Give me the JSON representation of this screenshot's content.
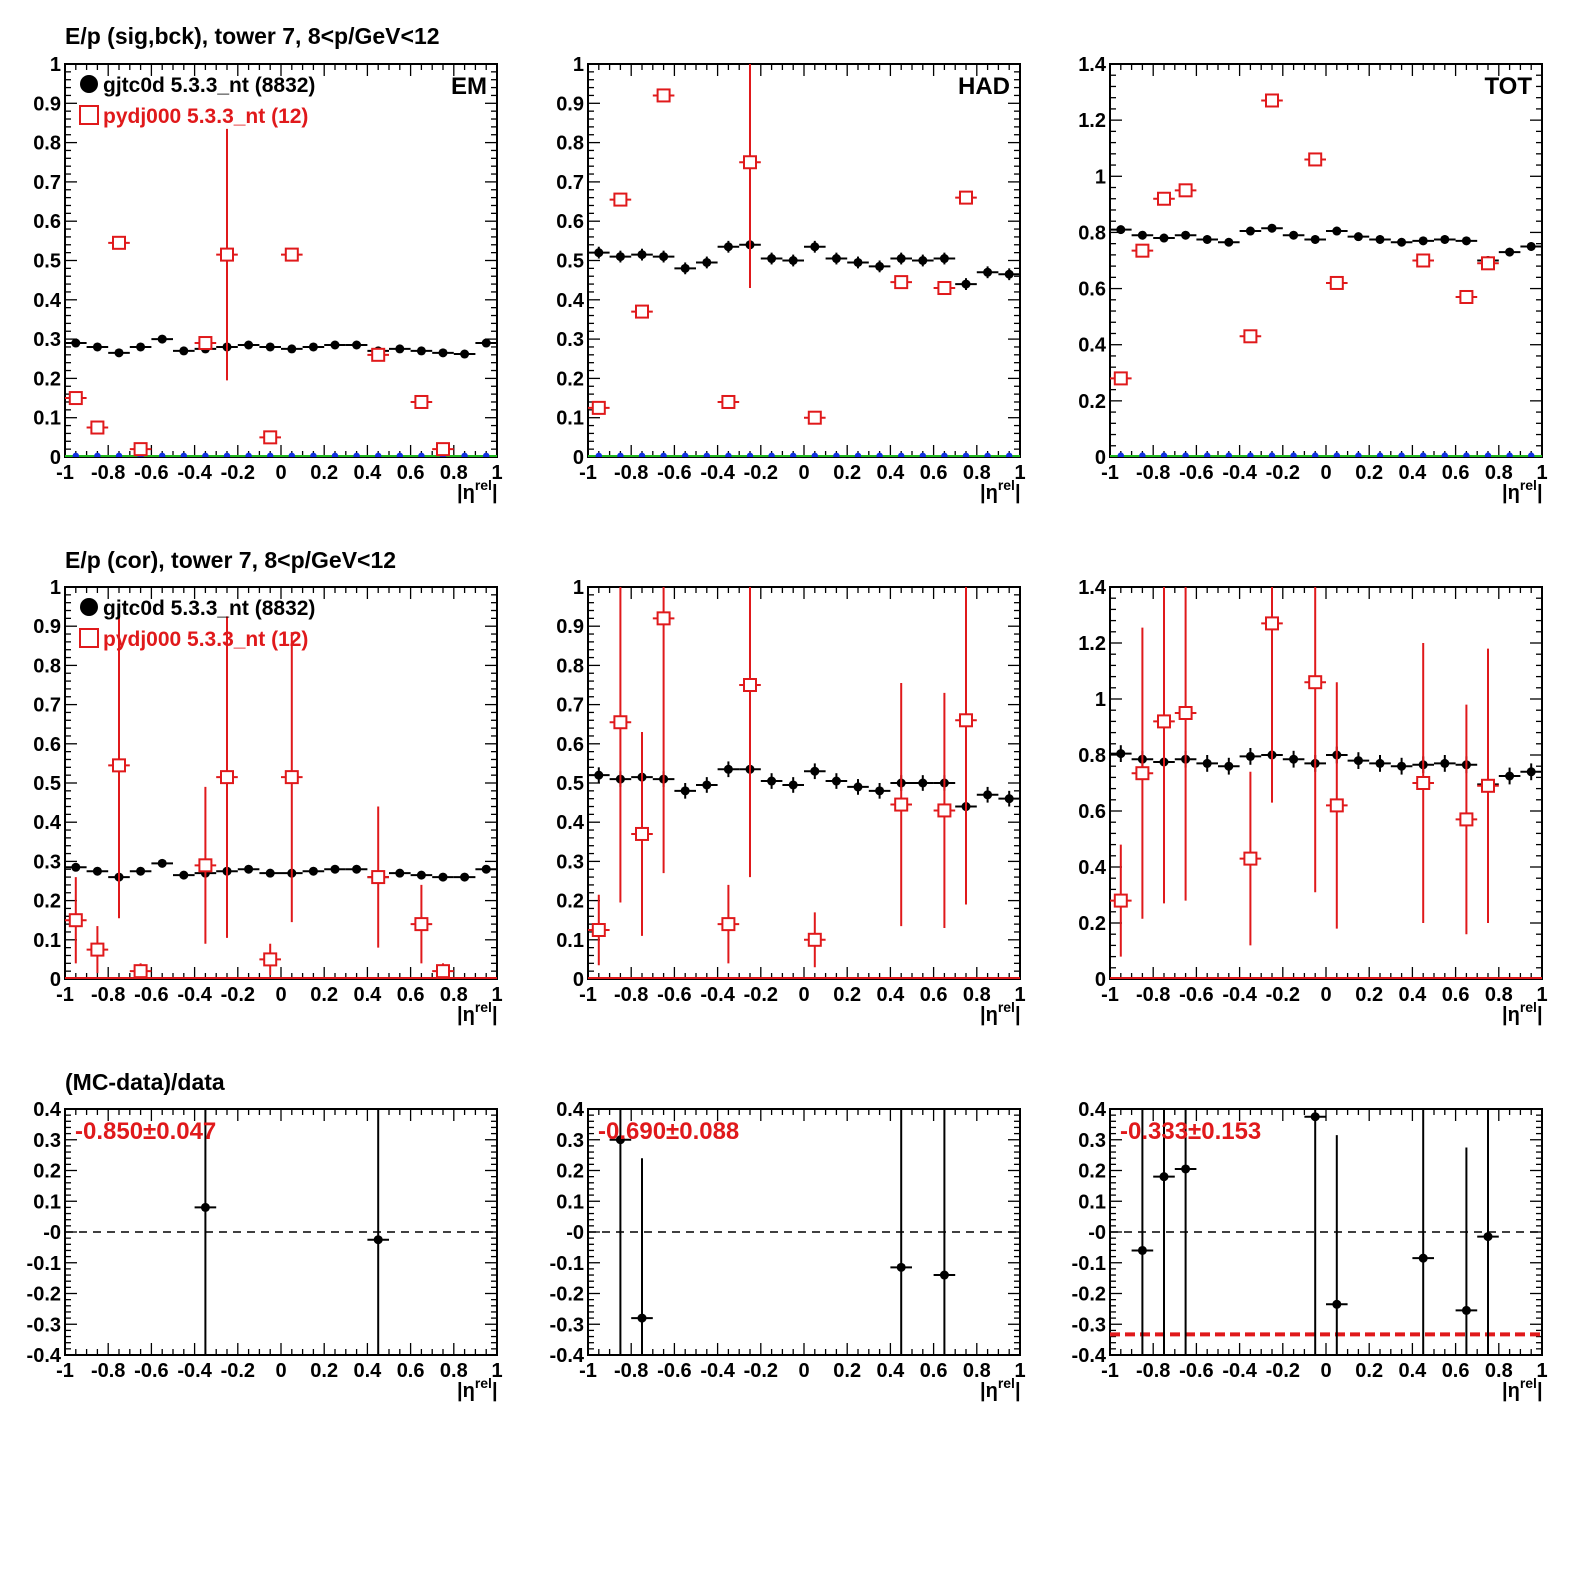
{
  "row_titles": [
    "E/p (sig,bck), tower 7,  8<p/GeV<12",
    "E/p (cor), tower 7,  8<p/GeV<12",
    "(MC-data)/data"
  ],
  "legend": {
    "data_label": "gjtc0d 5.3.3_nt (8832)",
    "mc_label": "pydj000 5.3.3_nt (12)"
  },
  "colors": {
    "data": "#000000",
    "mc": "#e0191b",
    "bck": "#1030e0",
    "zero": "#22bb22",
    "grid_dash": "#000000"
  },
  "x_axis_label_main": "|η",
  "x_axis_label_sup": "rel",
  "chart_data": [
    {
      "id": "sig_em",
      "type": "scatter",
      "label": "EM",
      "xlim": [
        -1,
        1
      ],
      "ylim": [
        0,
        1
      ],
      "x_ticks": [
        "-1",
        "-0.8",
        "-0.6",
        "-0.4",
        "-0.2",
        "0",
        "0.2",
        "0.4",
        "0.6",
        "0.8",
        "1"
      ],
      "y_ticks": [
        "0",
        "0.1",
        "0.2",
        "0.3",
        "0.4",
        "0.5",
        "0.6",
        "0.7",
        "0.8",
        "0.9",
        "1"
      ],
      "show_legend": true,
      "data": {
        "x": [
          -0.95,
          -0.85,
          -0.75,
          -0.65,
          -0.55,
          -0.45,
          -0.35,
          -0.25,
          -0.15,
          -0.05,
          0.05,
          0.15,
          0.25,
          0.35,
          0.45,
          0.55,
          0.65,
          0.75,
          0.85,
          0.95
        ],
        "y": [
          0.29,
          0.28,
          0.265,
          0.28,
          0.3,
          0.27,
          0.275,
          0.28,
          0.285,
          0.28,
          0.275,
          0.28,
          0.285,
          0.285,
          0.27,
          0.275,
          0.27,
          0.265,
          0.262,
          0.29
        ],
        "err": 0.008
      },
      "mc": {
        "x": [
          -0.95,
          -0.85,
          -0.75,
          -0.65,
          -0.35,
          -0.25,
          -0.05,
          0.05,
          0.45,
          0.65,
          0.75
        ],
        "y": [
          0.15,
          0.075,
          0.545,
          0.02,
          0.29,
          0.515,
          0.05,
          0.515,
          0.26,
          0.14,
          0.02
        ],
        "err": [
          0,
          0,
          0,
          0,
          0,
          0.32,
          0,
          0,
          0,
          0,
          0
        ]
      },
      "bck": {
        "show": true,
        "y": 0.003
      }
    },
    {
      "id": "sig_had",
      "type": "scatter",
      "label": "HAD",
      "xlim": [
        -1,
        1
      ],
      "ylim": [
        0,
        1
      ],
      "x_ticks": [
        "-1",
        "-0.8",
        "-0.6",
        "-0.4",
        "-0.2",
        "0",
        "0.2",
        "0.4",
        "0.6",
        "0.8",
        "1"
      ],
      "y_ticks": [
        "0",
        "0.1",
        "0.2",
        "0.3",
        "0.4",
        "0.5",
        "0.6",
        "0.7",
        "0.8",
        "0.9",
        "1"
      ],
      "show_legend": false,
      "data": {
        "x": [
          -0.95,
          -0.85,
          -0.75,
          -0.65,
          -0.55,
          -0.45,
          -0.35,
          -0.25,
          -0.15,
          -0.05,
          0.05,
          0.15,
          0.25,
          0.35,
          0.45,
          0.55,
          0.65,
          0.75,
          0.85,
          0.95
        ],
        "y": [
          0.52,
          0.51,
          0.515,
          0.51,
          0.48,
          0.495,
          0.535,
          0.54,
          0.505,
          0.5,
          0.535,
          0.505,
          0.495,
          0.485,
          0.505,
          0.5,
          0.505,
          0.44,
          0.47,
          0.465
        ],
        "err": 0.015
      },
      "mc": {
        "x": [
          -0.95,
          -0.85,
          -0.75,
          -0.65,
          -0.35,
          -0.25,
          0.05,
          0.45,
          0.65,
          0.75
        ],
        "y": [
          0.125,
          0.655,
          0.37,
          0.92,
          0.14,
          0.75,
          0.1,
          0.445,
          0.43,
          0.66
        ],
        "err": [
          0,
          0,
          0,
          0,
          0,
          0.32,
          0,
          0,
          0,
          0
        ]
      },
      "bck": {
        "show": true,
        "y": 0.003
      }
    },
    {
      "id": "sig_tot",
      "type": "scatter",
      "label": "TOT",
      "xlim": [
        -1,
        1
      ],
      "ylim": [
        0,
        1.4
      ],
      "x_ticks": [
        "-1",
        "-0.8",
        "-0.6",
        "-0.4",
        "-0.2",
        "0",
        "0.2",
        "0.4",
        "0.6",
        "0.8",
        "1"
      ],
      "y_ticks": [
        "0",
        "0.2",
        "0.4",
        "0.6",
        "0.8",
        "1",
        "1.2",
        "1.4"
      ],
      "show_legend": false,
      "data": {
        "x": [
          -0.95,
          -0.85,
          -0.75,
          -0.65,
          -0.55,
          -0.45,
          -0.35,
          -0.25,
          -0.15,
          -0.05,
          0.05,
          0.15,
          0.25,
          0.35,
          0.45,
          0.55,
          0.65,
          0.75,
          0.85,
          0.95
        ],
        "y": [
          0.81,
          0.79,
          0.78,
          0.79,
          0.775,
          0.765,
          0.805,
          0.815,
          0.79,
          0.775,
          0.805,
          0.785,
          0.775,
          0.765,
          0.77,
          0.775,
          0.77,
          0.7,
          0.73,
          0.75
        ],
        "err": 0.015
      },
      "mc": {
        "x": [
          -0.95,
          -0.85,
          -0.75,
          -0.65,
          -0.35,
          -0.25,
          -0.05,
          0.05,
          0.45,
          0.65,
          0.75
        ],
        "y": [
          0.28,
          0.735,
          0.92,
          0.95,
          0.43,
          1.27,
          1.06,
          0.62,
          0.7,
          0.57,
          0.69
        ],
        "err": [
          0,
          0,
          0,
          0,
          0,
          0,
          0,
          0,
          0,
          0,
          0
        ]
      },
      "bck": {
        "show": true,
        "y": 0.005
      }
    },
    {
      "id": "cor_em",
      "type": "scatter",
      "label": "",
      "xlim": [
        -1,
        1
      ],
      "ylim": [
        0,
        1
      ],
      "x_ticks": [
        "-1",
        "-0.8",
        "-0.6",
        "-0.4",
        "-0.2",
        "0",
        "0.2",
        "0.4",
        "0.6",
        "0.8",
        "1"
      ],
      "y_ticks": [
        "0",
        "0.1",
        "0.2",
        "0.3",
        "0.4",
        "0.5",
        "0.6",
        "0.7",
        "0.8",
        "0.9",
        "1"
      ],
      "show_legend": true,
      "data": {
        "x": [
          -0.95,
          -0.85,
          -0.75,
          -0.65,
          -0.55,
          -0.45,
          -0.35,
          -0.25,
          -0.15,
          -0.05,
          0.05,
          0.15,
          0.25,
          0.35,
          0.45,
          0.55,
          0.65,
          0.75,
          0.85,
          0.95
        ],
        "y": [
          0.285,
          0.275,
          0.26,
          0.275,
          0.295,
          0.265,
          0.27,
          0.275,
          0.28,
          0.27,
          0.27,
          0.275,
          0.28,
          0.28,
          0.26,
          0.27,
          0.265,
          0.26,
          0.26,
          0.28
        ],
        "err": 0.01
      },
      "mc": {
        "x": [
          -0.95,
          -0.85,
          -0.75,
          -0.65,
          -0.35,
          -0.25,
          -0.05,
          0.05,
          0.45,
          0.65,
          0.75
        ],
        "y": [
          0.15,
          0.075,
          0.545,
          0.02,
          0.29,
          0.515,
          0.05,
          0.515,
          0.26,
          0.14,
          0.02
        ],
        "err": [
          0.11,
          0.06,
          0.39,
          0.02,
          0.2,
          0.41,
          0.04,
          0.37,
          0.18,
          0.1,
          0.02
        ]
      },
      "bck": {
        "show": false,
        "y": 0
      }
    },
    {
      "id": "cor_had",
      "type": "scatter",
      "label": "",
      "xlim": [
        -1,
        1
      ],
      "ylim": [
        0,
        1
      ],
      "x_ticks": [
        "-1",
        "-0.8",
        "-0.6",
        "-0.4",
        "-0.2",
        "0",
        "0.2",
        "0.4",
        "0.6",
        "0.8",
        "1"
      ],
      "y_ticks": [
        "0",
        "0.1",
        "0.2",
        "0.3",
        "0.4",
        "0.5",
        "0.6",
        "0.7",
        "0.8",
        "0.9",
        "1"
      ],
      "show_legend": false,
      "data": {
        "x": [
          -0.95,
          -0.85,
          -0.75,
          -0.65,
          -0.55,
          -0.45,
          -0.35,
          -0.25,
          -0.15,
          -0.05,
          0.05,
          0.15,
          0.25,
          0.35,
          0.45,
          0.55,
          0.65,
          0.75,
          0.85,
          0.95
        ],
        "y": [
          0.52,
          0.51,
          0.515,
          0.51,
          0.48,
          0.495,
          0.535,
          0.535,
          0.505,
          0.495,
          0.53,
          0.505,
          0.49,
          0.48,
          0.5,
          0.5,
          0.5,
          0.44,
          0.47,
          0.46
        ],
        "err": 0.02
      },
      "mc": {
        "x": [
          -0.95,
          -0.85,
          -0.75,
          -0.65,
          -0.35,
          -0.25,
          0.05,
          0.45,
          0.65,
          0.75
        ],
        "y": [
          0.125,
          0.655,
          0.37,
          0.92,
          0.14,
          0.75,
          0.1,
          0.445,
          0.43,
          0.66
        ],
        "err": [
          0.09,
          0.46,
          0.26,
          0.65,
          0.1,
          0.49,
          0.07,
          0.31,
          0.3,
          0.47
        ]
      },
      "bck": {
        "show": false,
        "y": 0
      }
    },
    {
      "id": "cor_tot",
      "type": "scatter",
      "label": "",
      "xlim": [
        -1,
        1
      ],
      "ylim": [
        0,
        1.4
      ],
      "x_ticks": [
        "-1",
        "-0.8",
        "-0.6",
        "-0.4",
        "-0.2",
        "0",
        "0.2",
        "0.4",
        "0.6",
        "0.8",
        "1"
      ],
      "y_ticks": [
        "0",
        "0.2",
        "0.4",
        "0.6",
        "0.8",
        "1",
        "1.2",
        "1.4"
      ],
      "show_legend": false,
      "data": {
        "x": [
          -0.95,
          -0.85,
          -0.75,
          -0.65,
          -0.55,
          -0.45,
          -0.35,
          -0.25,
          -0.15,
          -0.05,
          0.05,
          0.15,
          0.25,
          0.35,
          0.45,
          0.55,
          0.65,
          0.75,
          0.85,
          0.95
        ],
        "y": [
          0.805,
          0.785,
          0.775,
          0.785,
          0.77,
          0.76,
          0.795,
          0.8,
          0.785,
          0.77,
          0.8,
          0.78,
          0.77,
          0.76,
          0.765,
          0.77,
          0.765,
          0.695,
          0.725,
          0.74
        ],
        "err": 0.03
      },
      "mc": {
        "x": [
          -0.95,
          -0.85,
          -0.75,
          -0.65,
          -0.35,
          -0.25,
          -0.05,
          0.05,
          0.45,
          0.65,
          0.75
        ],
        "y": [
          0.28,
          0.735,
          0.92,
          0.95,
          0.43,
          1.27,
          1.06,
          0.62,
          0.7,
          0.57,
          0.69
        ],
        "err": [
          0.2,
          0.52,
          0.65,
          0.67,
          0.31,
          0.64,
          0.75,
          0.44,
          0.5,
          0.41,
          0.49
        ]
      },
      "bck": {
        "show": false,
        "y": 0
      }
    },
    {
      "id": "ratio_em",
      "type": "scatter",
      "label": "",
      "xlim": [
        -1,
        1
      ],
      "ylim": [
        -0.4,
        0.4
      ],
      "x_ticks": [
        "-1",
        "-0.8",
        "-0.6",
        "-0.4",
        "-0.2",
        "0",
        "0.2",
        "0.4",
        "0.6",
        "0.8",
        "1"
      ],
      "y_ticks": [
        "-0.4",
        "-0.3",
        "-0.2",
        "-0.1",
        "-0",
        "0.1",
        "0.2",
        "0.3",
        "0.4"
      ],
      "fit_text": "-0.850±0.047",
      "fit_value": -0.85,
      "show_fit_line": false,
      "data": {
        "x": [
          -0.35,
          0.45
        ],
        "y": [
          0.08,
          -0.025
        ],
        "err": [
          1.0,
          1.0
        ]
      }
    },
    {
      "id": "ratio_had",
      "type": "scatter",
      "label": "",
      "xlim": [
        -1,
        1
      ],
      "ylim": [
        -0.4,
        0.4
      ],
      "x_ticks": [
        "-1",
        "-0.8",
        "-0.6",
        "-0.4",
        "-0.2",
        "0",
        "0.2",
        "0.4",
        "0.6",
        "0.8",
        "1"
      ],
      "y_ticks": [
        "-0.4",
        "-0.3",
        "-0.2",
        "-0.1",
        "-0",
        "0.1",
        "0.2",
        "0.3",
        "0.4"
      ],
      "fit_text": "-0.690±0.088",
      "fit_value": -0.69,
      "show_fit_line": false,
      "data": {
        "x": [
          -0.85,
          -0.75,
          0.45,
          0.65
        ],
        "y": [
          0.3,
          -0.28,
          -0.115,
          -0.14
        ],
        "err": [
          1.0,
          0.52,
          1.0,
          1.0
        ]
      }
    },
    {
      "id": "ratio_tot",
      "type": "scatter",
      "label": "",
      "xlim": [
        -1,
        1
      ],
      "ylim": [
        -0.4,
        0.4
      ],
      "x_ticks": [
        "-1",
        "-0.8",
        "-0.6",
        "-0.4",
        "-0.2",
        "0",
        "0.2",
        "0.4",
        "0.6",
        "0.8",
        "1"
      ],
      "y_ticks": [
        "-0.4",
        "-0.3",
        "-0.2",
        "-0.1",
        "-0",
        "0.1",
        "0.2",
        "0.3",
        "0.4"
      ],
      "fit_text": "-0.333±0.153",
      "fit_value": -0.333,
      "show_fit_line": true,
      "data": {
        "x": [
          -0.85,
          -0.75,
          -0.65,
          -0.05,
          0.05,
          0.45,
          0.65,
          0.75
        ],
        "y": [
          -0.06,
          0.18,
          0.205,
          0.375,
          -0.235,
          -0.085,
          -0.255,
          -0.015
        ],
        "err": [
          1.0,
          1.0,
          1.0,
          1.0,
          0.55,
          1.0,
          0.53,
          1.0
        ]
      }
    }
  ]
}
